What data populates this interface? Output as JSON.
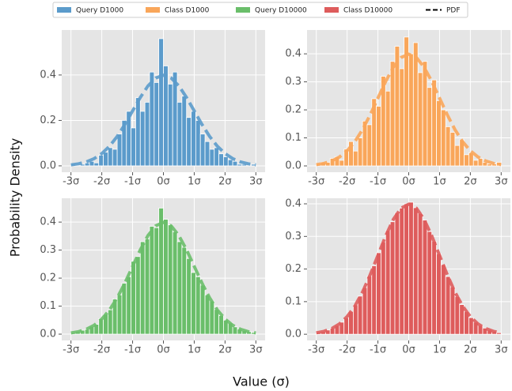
{
  "figure": {
    "ylabel": "Probability Density",
    "xlabel": "Value (σ)"
  },
  "chart_data": [
    {
      "type": "histogram",
      "bins": [
        -3,
        -2.85,
        -2.7,
        -2.55,
        -2.4,
        -2.25,
        -2.1,
        -1.95,
        -1.8,
        -1.65,
        -1.5,
        -1.35,
        -1.2,
        -1.05,
        -0.9,
        -0.75,
        -0.6,
        -0.45,
        -0.3,
        -0.15,
        0,
        0.15,
        0.3,
        0.45,
        0.6,
        0.75,
        0.9,
        1.05,
        1.2,
        1.35,
        1.5,
        1.65,
        1.8,
        1.95,
        2.1,
        2.25,
        2.4,
        2.55,
        2.7,
        2.85,
        3
      ],
      "series": [
        {
          "name": "Query D1000",
          "color": "#5b9bcb",
          "values": [
            0.007,
            0,
            0.007,
            0.013,
            0.02,
            0.013,
            0.047,
            0.06,
            0.08,
            0.073,
            0.14,
            0.2,
            0.24,
            0.167,
            0.3,
            0.24,
            0.28,
            0.413,
            0.367,
            0.56,
            0.44,
            0.36,
            0.413,
            0.28,
            0.307,
            0.213,
            0.24,
            0.2,
            0.14,
            0.107,
            0.073,
            0.08,
            0.053,
            0.04,
            0.027,
            0.02,
            0.007,
            0.007,
            0,
            0.007
          ]
        },
        {
          "name": "PDF",
          "type": "line",
          "color": "#5b9bcb",
          "x": [
            -3,
            -2.75,
            -2.5,
            -2.25,
            -2,
            -1.75,
            -1.5,
            -1.25,
            -1,
            -0.75,
            -0.5,
            -0.25,
            0,
            0.25,
            0.5,
            0.75,
            1,
            1.25,
            1.5,
            1.75,
            2,
            2.25,
            2.5,
            2.75,
            3
          ],
          "values": [
            0.0044,
            0.0091,
            0.0175,
            0.0317,
            0.054,
            0.0863,
            0.1295,
            0.1826,
            0.242,
            0.3011,
            0.3521,
            0.3867,
            0.3989,
            0.3867,
            0.3521,
            0.3011,
            0.242,
            0.1826,
            0.1295,
            0.0863,
            0.054,
            0.0317,
            0.0175,
            0.0091,
            0.0044
          ]
        }
      ],
      "xlim": [
        -3.3,
        3.3
      ],
      "ylim": [
        -0.028,
        0.598
      ],
      "xticks": [
        {
          "value": -3,
          "label": "-3σ"
        },
        {
          "value": -2,
          "label": "-2σ"
        },
        {
          "value": -1,
          "label": "-1σ"
        },
        {
          "value": 0,
          "label": "0σ"
        },
        {
          "value": 1,
          "label": "1σ"
        },
        {
          "value": 2,
          "label": "2σ"
        },
        {
          "value": 3,
          "label": "3σ"
        }
      ],
      "yticks": [
        {
          "value": 0,
          "label": "0.0"
        },
        0.2,
        0.4
      ],
      "grid": true
    },
    {
      "type": "histogram",
      "bins": [
        -3,
        -2.85,
        -2.7,
        -2.55,
        -2.4,
        -2.25,
        -2.1,
        -1.95,
        -1.8,
        -1.65,
        -1.5,
        -1.35,
        -1.2,
        -1.05,
        -0.9,
        -0.75,
        -0.6,
        -0.45,
        -0.3,
        -0.15,
        0,
        0.15,
        0.3,
        0.45,
        0.6,
        0.75,
        0.9,
        1.05,
        1.2,
        1.35,
        1.5,
        1.65,
        1.8,
        1.95,
        2.1,
        2.25,
        2.4,
        2.55,
        2.7,
        2.85,
        3
      ],
      "series": [
        {
          "name": "Class D1000",
          "color": "#f9a65a",
          "values": [
            0.007,
            0.013,
            0.013,
            0.027,
            0.033,
            0.02,
            0.06,
            0.087,
            0.053,
            0.1,
            0.16,
            0.147,
            0.24,
            0.213,
            0.32,
            0.267,
            0.373,
            0.427,
            0.347,
            0.46,
            0.4,
            0.44,
            0.333,
            0.373,
            0.28,
            0.307,
            0.233,
            0.2,
            0.14,
            0.12,
            0.073,
            0.093,
            0.04,
            0.047,
            0.02,
            0.027,
            0.013,
            0.007,
            0.007,
            0.013
          ]
        },
        {
          "name": "PDF",
          "type": "line",
          "color": "#f9a65a",
          "x": [
            -3,
            -2.75,
            -2.5,
            -2.25,
            -2,
            -1.75,
            -1.5,
            -1.25,
            -1,
            -0.75,
            -0.5,
            -0.25,
            0,
            0.25,
            0.5,
            0.75,
            1,
            1.25,
            1.5,
            1.75,
            2,
            2.25,
            2.5,
            2.75,
            3
          ],
          "values": [
            0.0044,
            0.0091,
            0.0175,
            0.0317,
            0.054,
            0.0863,
            0.1295,
            0.1826,
            0.242,
            0.3011,
            0.3521,
            0.3867,
            0.3989,
            0.3867,
            0.3521,
            0.3011,
            0.242,
            0.1826,
            0.1295,
            0.0863,
            0.054,
            0.0317,
            0.0175,
            0.0091,
            0.0044
          ]
        }
      ],
      "xlim": [
        -3.3,
        3.3
      ],
      "ylim": [
        -0.0225,
        0.485
      ],
      "xticks": [
        {
          "value": -3,
          "label": "-3σ"
        },
        {
          "value": -2,
          "label": "-2σ"
        },
        {
          "value": -1,
          "label": "-1σ"
        },
        {
          "value": 0,
          "label": "0σ"
        },
        {
          "value": 1,
          "label": "1σ"
        },
        {
          "value": 2,
          "label": "2σ"
        },
        {
          "value": 3,
          "label": "3σ"
        }
      ],
      "yticks": [
        {
          "value": 0,
          "label": "0.0"
        },
        0.1,
        0.2,
        0.3,
        0.4
      ],
      "grid": true
    },
    {
      "type": "histogram",
      "bins": [
        -3,
        -2.85,
        -2.7,
        -2.55,
        -2.4,
        -2.25,
        -2.1,
        -1.95,
        -1.8,
        -1.65,
        -1.5,
        -1.35,
        -1.2,
        -1.05,
        -0.9,
        -0.75,
        -0.6,
        -0.45,
        -0.3,
        -0.15,
        0,
        0.15,
        0.3,
        0.45,
        0.6,
        0.75,
        0.9,
        1.05,
        1.2,
        1.35,
        1.5,
        1.65,
        1.8,
        1.95,
        2.1,
        2.25,
        2.4,
        2.55,
        2.7,
        2.85,
        3
      ],
      "series": [
        {
          "name": "Query D10000",
          "color": "#6abe6a",
          "values": [
            0.005,
            0.009,
            0.014,
            0.017,
            0.028,
            0.035,
            0.055,
            0.071,
            0.087,
            0.125,
            0.14,
            0.182,
            0.205,
            0.26,
            0.277,
            0.33,
            0.34,
            0.385,
            0.38,
            0.45,
            0.41,
            0.39,
            0.365,
            0.33,
            0.31,
            0.27,
            0.22,
            0.205,
            0.175,
            0.14,
            0.118,
            0.088,
            0.066,
            0.05,
            0.04,
            0.026,
            0.018,
            0.013,
            0.009,
            0.006
          ]
        },
        {
          "name": "PDF",
          "type": "line",
          "color": "#6abe6a",
          "x": [
            -3,
            -2.75,
            -2.5,
            -2.25,
            -2,
            -1.75,
            -1.5,
            -1.25,
            -1,
            -0.75,
            -0.5,
            -0.25,
            0,
            0.25,
            0.5,
            0.75,
            1,
            1.25,
            1.5,
            1.75,
            2,
            2.25,
            2.5,
            2.75,
            3
          ],
          "values": [
            0.0044,
            0.0091,
            0.0175,
            0.0317,
            0.054,
            0.0863,
            0.1295,
            0.1826,
            0.242,
            0.3011,
            0.3521,
            0.3867,
            0.3989,
            0.3867,
            0.3521,
            0.3011,
            0.242,
            0.1826,
            0.1295,
            0.0863,
            0.054,
            0.0317,
            0.0175,
            0.0091,
            0.0044
          ]
        }
      ],
      "xlim": [
        -3.3,
        3.3
      ],
      "ylim": [
        -0.0225,
        0.485
      ],
      "xticks": [
        {
          "value": -3,
          "label": "-3σ"
        },
        {
          "value": -2,
          "label": "-2σ"
        },
        {
          "value": -1,
          "label": "-1σ"
        },
        {
          "value": 0,
          "label": "0σ"
        },
        {
          "value": 1,
          "label": "1σ"
        },
        {
          "value": 2,
          "label": "2σ"
        },
        {
          "value": 3,
          "label": "3σ"
        }
      ],
      "yticks": [
        {
          "value": 0,
          "label": "0.0"
        },
        0.1,
        0.2,
        0.3,
        0.4
      ],
      "grid": true
    },
    {
      "type": "histogram",
      "bins": [
        -3,
        -2.85,
        -2.7,
        -2.55,
        -2.4,
        -2.25,
        -2.1,
        -1.95,
        -1.8,
        -1.65,
        -1.5,
        -1.35,
        -1.2,
        -1.05,
        -0.9,
        -0.75,
        -0.6,
        -0.45,
        -0.3,
        -0.15,
        0,
        0.15,
        0.3,
        0.45,
        0.6,
        0.75,
        0.9,
        1.05,
        1.2,
        1.35,
        1.5,
        1.65,
        1.8,
        1.95,
        2.1,
        2.25,
        2.4,
        2.55,
        2.7,
        2.85,
        3
      ],
      "series": [
        {
          "name": "Class D10000",
          "color": "#de5c5c",
          "values": [
            0.006,
            0.008,
            0.013,
            0.019,
            0.027,
            0.037,
            0.05,
            0.07,
            0.09,
            0.117,
            0.143,
            0.178,
            0.21,
            0.25,
            0.283,
            0.318,
            0.345,
            0.373,
            0.387,
            0.4,
            0.405,
            0.388,
            0.37,
            0.35,
            0.315,
            0.285,
            0.247,
            0.213,
            0.177,
            0.145,
            0.115,
            0.091,
            0.069,
            0.051,
            0.037,
            0.027,
            0.019,
            0.013,
            0.009,
            0.005
          ]
        },
        {
          "name": "PDF",
          "type": "line",
          "color": "#de5c5c",
          "x": [
            -3,
            -2.75,
            -2.5,
            -2.25,
            -2,
            -1.75,
            -1.5,
            -1.25,
            -1,
            -0.75,
            -0.5,
            -0.25,
            0,
            0.25,
            0.5,
            0.75,
            1,
            1.25,
            1.5,
            1.75,
            2,
            2.25,
            2.5,
            2.75,
            3
          ],
          "values": [
            0.0044,
            0.0091,
            0.0175,
            0.0317,
            0.054,
            0.0863,
            0.1295,
            0.1826,
            0.242,
            0.3011,
            0.3521,
            0.3867,
            0.3989,
            0.3867,
            0.3521,
            0.3011,
            0.242,
            0.1826,
            0.1295,
            0.0863,
            0.054,
            0.0317,
            0.0175,
            0.0091,
            0.0044
          ]
        }
      ],
      "xlim": [
        -3.3,
        3.3
      ],
      "ylim": [
        -0.019,
        0.417
      ],
      "xticks": [
        {
          "value": -3,
          "label": "-3σ"
        },
        {
          "value": -2,
          "label": "-2σ"
        },
        {
          "value": -1,
          "label": "-1σ"
        },
        {
          "value": 0,
          "label": "0σ"
        },
        {
          "value": 1,
          "label": "1σ"
        },
        {
          "value": 2,
          "label": "2σ"
        },
        {
          "value": 3,
          "label": "3σ"
        }
      ],
      "yticks": [
        {
          "value": 0,
          "label": "0.0"
        },
        0.1,
        0.2,
        0.3,
        0.4
      ],
      "grid": true
    }
  ]
}
